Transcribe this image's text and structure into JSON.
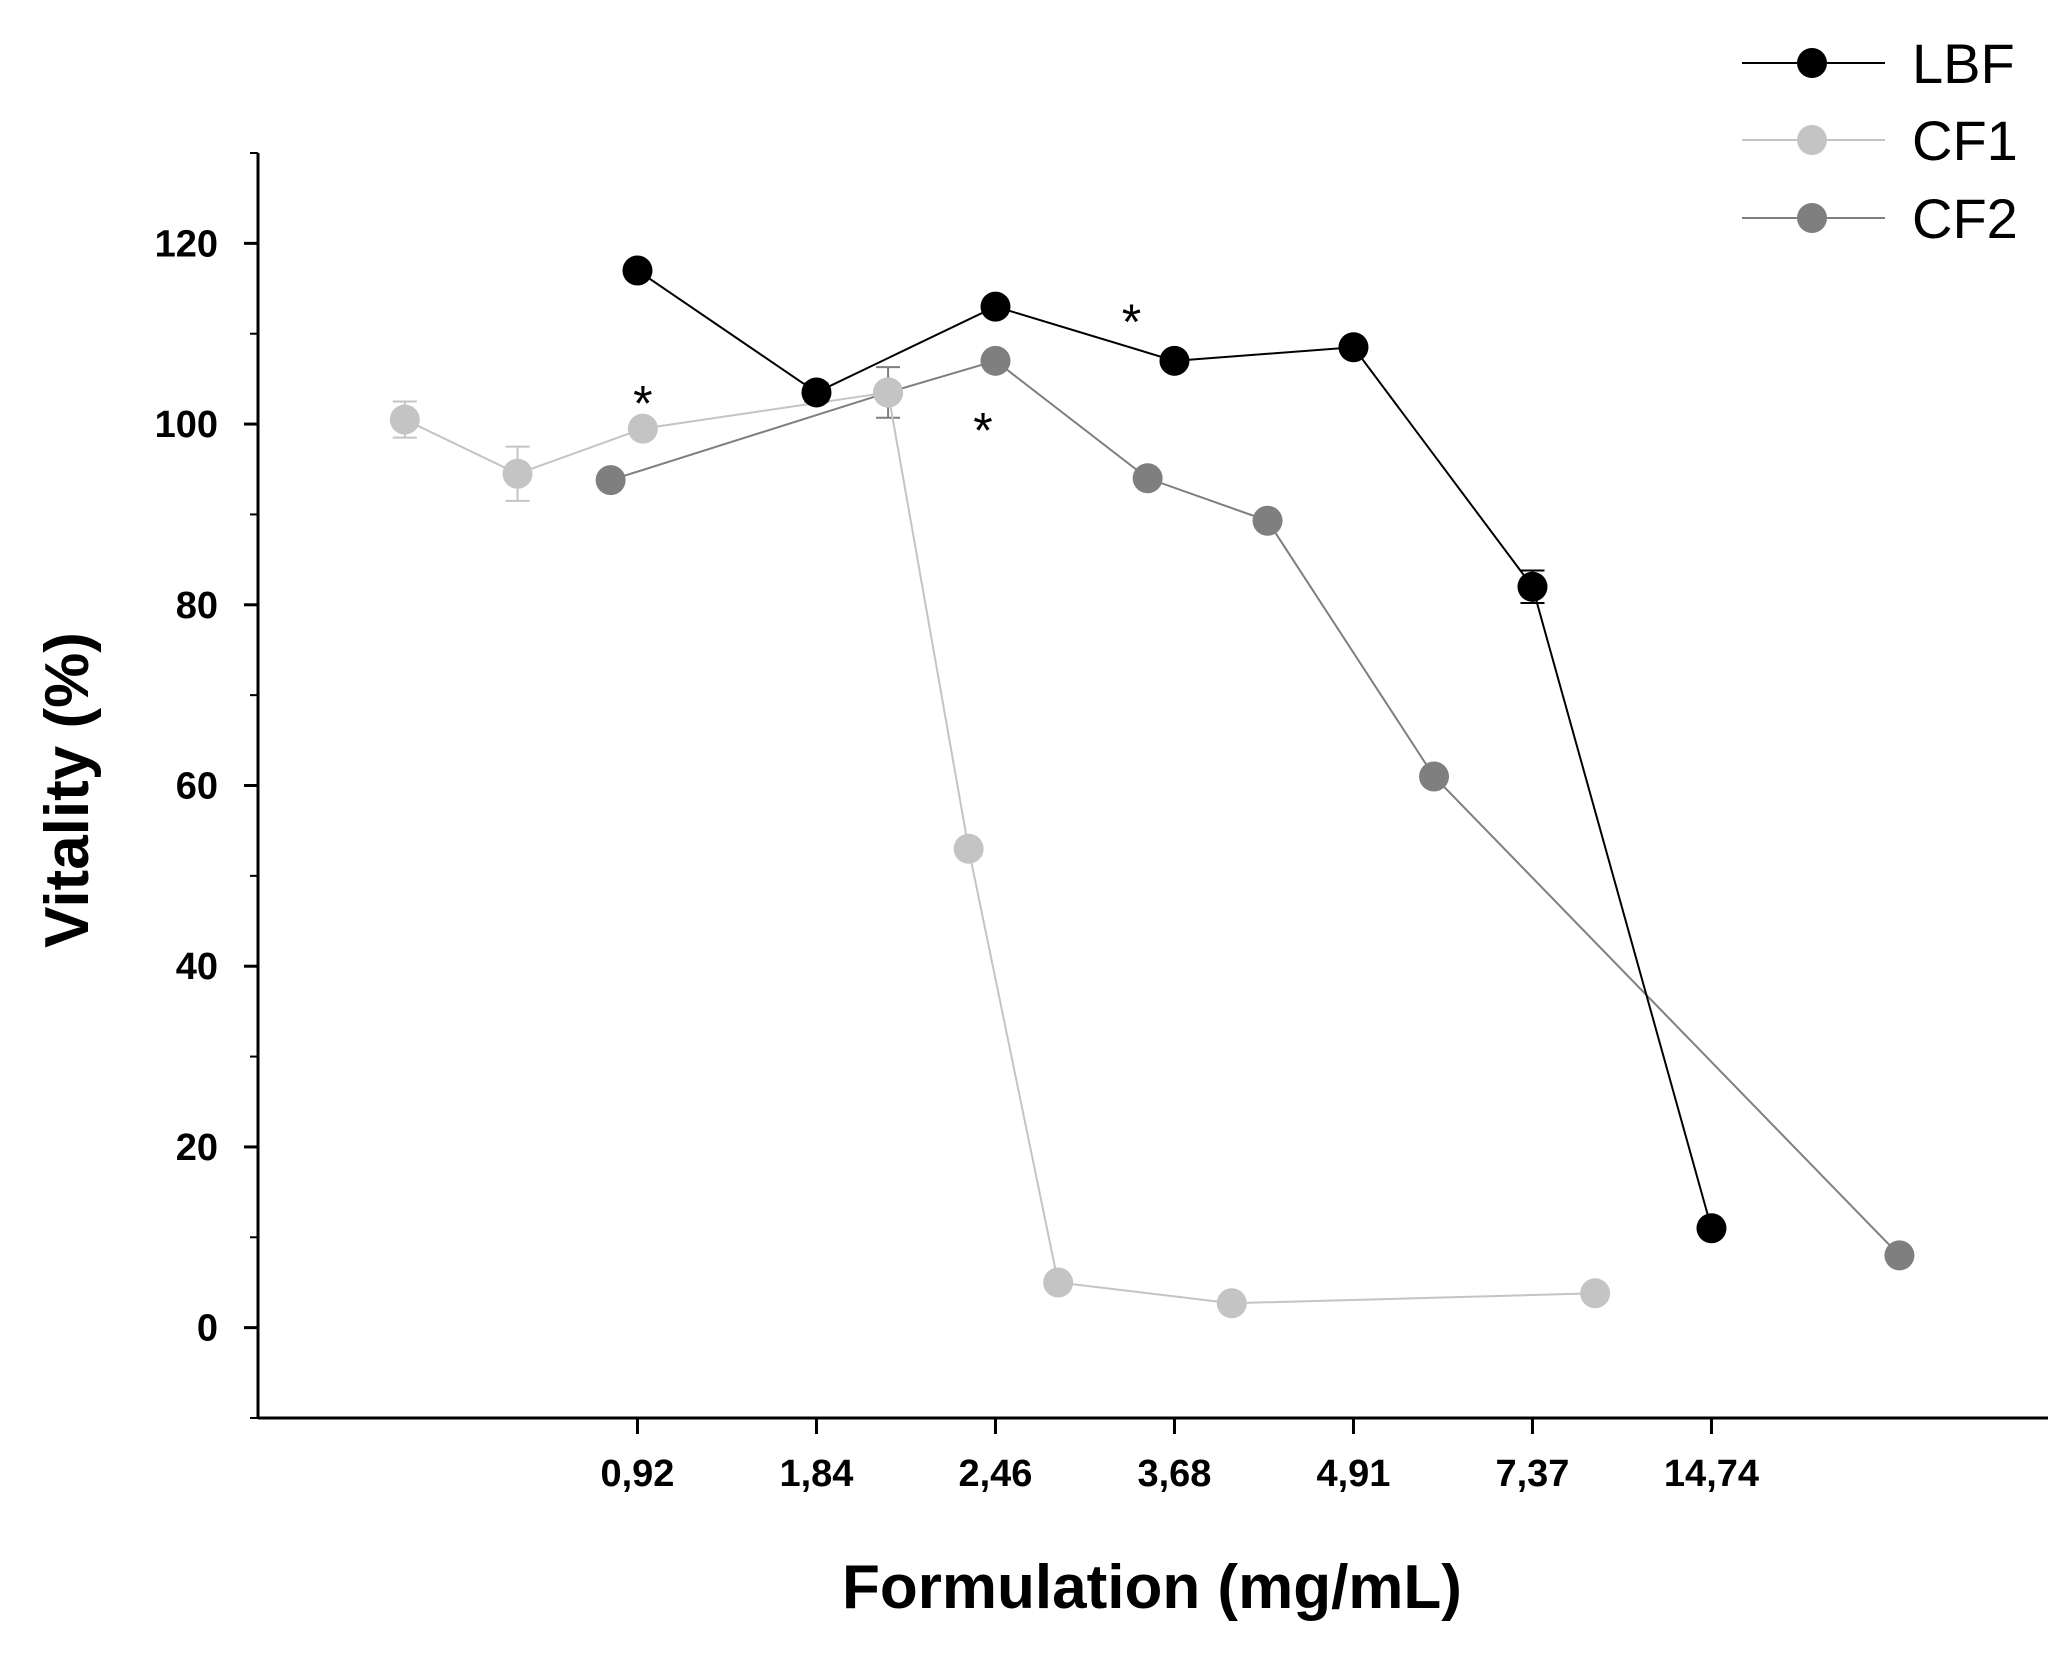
{
  "chart_data": {
    "type": "line",
    "xlabel": "Formulation (mg/mL)",
    "ylabel": "Vitality (%)",
    "x_tick_labels": [
      "0,92",
      "1,84",
      "2,46",
      "3,68",
      "4,91",
      "7,37",
      "14,74"
    ],
    "x_tick_positions": [
      1,
      2,
      3,
      4,
      5,
      6,
      7
    ],
    "xlim": [
      -1.12,
      8.88
    ],
    "yticks": [
      0,
      20,
      40,
      60,
      80,
      100,
      120
    ],
    "ylim": [
      -10,
      130
    ],
    "legend_position": "top-right",
    "series": [
      {
        "name": "LBF",
        "color": "#000000",
        "x": [
          1,
          2,
          3,
          4,
          5,
          6,
          7
        ],
        "y": [
          117,
          103.5,
          113,
          107,
          108.5,
          82,
          11
        ],
        "error": [
          0,
          1,
          0,
          0,
          0,
          1.8,
          0
        ]
      },
      {
        "name": "CF1",
        "color": "#c4c4c4",
        "x": [
          -0.3,
          0.33,
          1.03,
          2.4,
          2.85,
          3.35,
          4.32,
          6.35
        ],
        "y": [
          100.5,
          94.5,
          99.5,
          103.5,
          53,
          5,
          2.7,
          3.8
        ],
        "error": [
          2,
          3,
          0,
          0,
          0,
          0,
          0,
          0
        ]
      },
      {
        "name": "CF2",
        "color": "#7f7f7f",
        "x": [
          0.85,
          2.4,
          3.0,
          3.85,
          4.52,
          5.45,
          8.05
        ],
        "y": [
          93.8,
          103.5,
          107,
          94,
          89.3,
          61,
          8
        ],
        "error": [
          0,
          2.8,
          0,
          0,
          0,
          0,
          0
        ]
      }
    ],
    "annotations": [
      {
        "text": "*",
        "x": 1.03,
        "y": 103.5
      },
      {
        "text": "*",
        "x": 2.93,
        "y": 100.5
      },
      {
        "text": "*",
        "x": 3.76,
        "y": 112.5
      }
    ]
  }
}
